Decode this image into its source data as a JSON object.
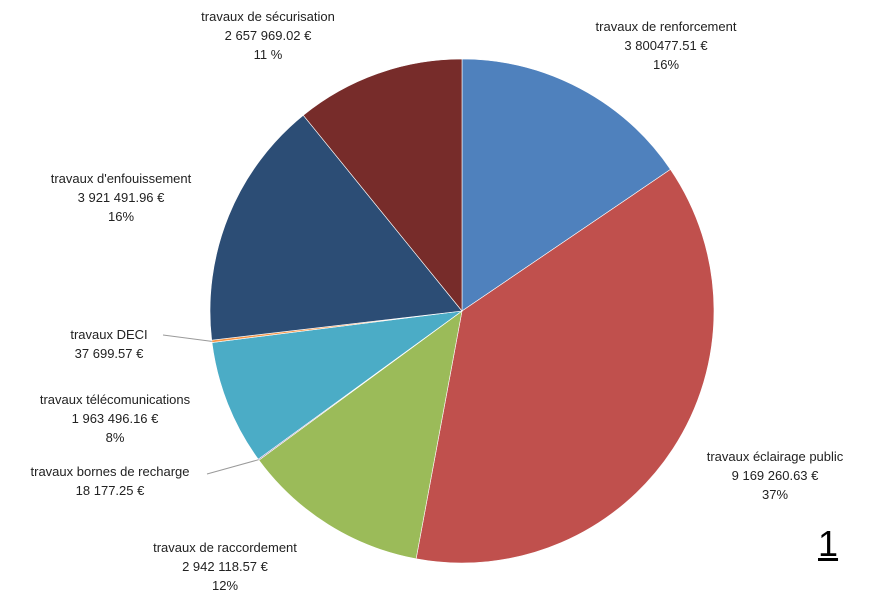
{
  "page_number": "1",
  "chart_data": {
    "type": "pie",
    "title": "",
    "unit": "€",
    "slices": [
      {
        "label": "travaux de renforcement",
        "value_text": "3 800477.51 €",
        "value": 3800477.51,
        "percent_text": "16%",
        "color": "#4F81BD"
      },
      {
        "label": "travaux éclairage public",
        "value_text": "9 169 260.63 €",
        "value": 9169260.63,
        "percent_text": "37%",
        "color": "#C0504D"
      },
      {
        "label": "travaux de raccordement",
        "value_text": "2 942 118.57 €",
        "value": 2942118.57,
        "percent_text": "12%",
        "color": "#9BBB59"
      },
      {
        "label": "travaux bornes de recharge",
        "value_text": "18 177.25 €",
        "value": 18177.25,
        "percent_text": "",
        "color": "#8064A2"
      },
      {
        "label": "travaux télécomunications",
        "value_text": "1 963 496.16 €",
        "value": 1963496.16,
        "percent_text": "8%",
        "color": "#4BACC6"
      },
      {
        "label": "travaux DECI",
        "value_text": "37 699.57 €",
        "value": 37699.57,
        "percent_text": "",
        "color": "#F79646"
      },
      {
        "label": "travaux d'enfouissement",
        "value_text": "3 921 491.96 €",
        "value": 3921491.96,
        "percent_text": "16%",
        "color": "#2C4D75"
      },
      {
        "label": "travaux de sécurisation",
        "value_text": "2 657 969.02 €",
        "value": 2657969.02,
        "percent_text": "11 %",
        "color": "#772C2A"
      }
    ]
  }
}
